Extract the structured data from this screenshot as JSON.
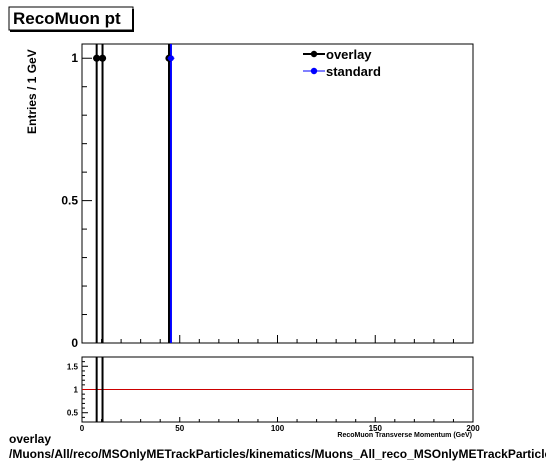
{
  "chart_data": {
    "type": "scatter",
    "title": "RecoMuon pt",
    "ylabel": "Entries / 1 GeV",
    "xlabel": "RecoMuon Transverse Momentum (GeV)",
    "xlim": [
      0,
      200
    ],
    "ylim": [
      0,
      1.05
    ],
    "y_ticks": [
      0,
      0.5,
      1
    ],
    "y_tick_labels": [
      "0",
      "0.5",
      "1"
    ],
    "x_ticks": [
      0,
      50,
      100,
      150,
      200
    ],
    "x_tick_labels": [
      "0",
      "50",
      "100",
      "150",
      "200"
    ],
    "legend_position": "top-right",
    "series": [
      {
        "name": "overlay",
        "color": "#000000",
        "x": [
          7.5,
          10.5,
          44.5
        ],
        "y": [
          1,
          1,
          1
        ]
      },
      {
        "name": "standard",
        "color": "#0000ff",
        "x": [
          45.5
        ],
        "y": [
          1
        ]
      }
    ],
    "ratio": {
      "ylim": [
        0.3,
        1.7
      ],
      "y_ticks": [
        0.5,
        1,
        1.5
      ],
      "y_tick_labels": [
        "0.5",
        "1",
        "1.5"
      ],
      "reference_value": 1,
      "reference_color": "#cc0000",
      "vlines_x": [
        7.5,
        10.5
      ]
    }
  },
  "footer": {
    "line1": "overlay",
    "line2": "/Muons/All/reco/MSOnlyMETrackParticles/kinematics/Muons_All_reco_MSOnlyMETrackParticles_kinematics_pt"
  }
}
